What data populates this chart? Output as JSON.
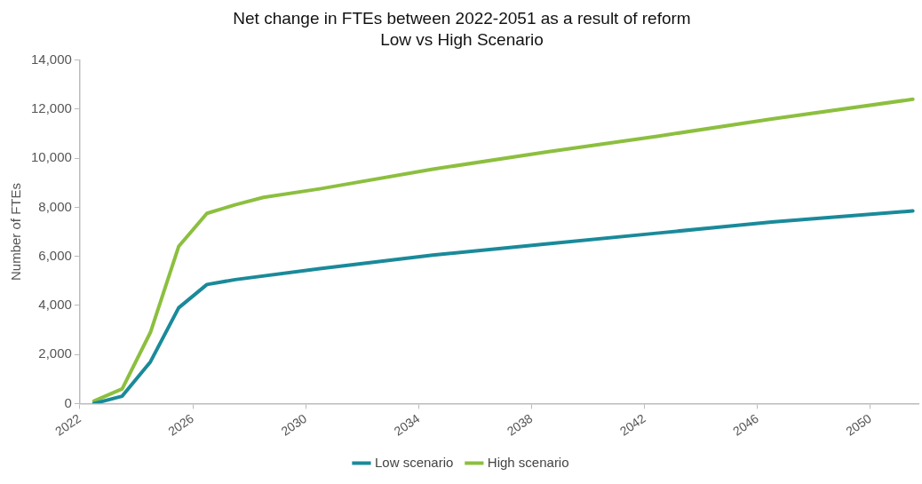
{
  "chart_data": {
    "type": "line",
    "title": "Net change in FTEs between 2022-2051 as a result of reform",
    "subtitle": "Low vs High Scenario",
    "ylabel": "Number of FTEs",
    "series": [
      {
        "name": "Low scenario",
        "color": "#1a8a9a",
        "x": [
          2022.5,
          2023.5,
          2024.5,
          2025.5,
          2026.5,
          2027.5,
          2030.5,
          2034.5,
          2038.5,
          2042.5,
          2046.5,
          2051.5
        ],
        "values": [
          0,
          300,
          1700,
          3900,
          4850,
          5050,
          5500,
          6050,
          6500,
          6950,
          7400,
          7850
        ]
      },
      {
        "name": "High scenario",
        "color": "#8cbf3f",
        "x": [
          2022.5,
          2023.5,
          2024.5,
          2025.5,
          2026.5,
          2027.5,
          2028.5,
          2030.5,
          2034.5,
          2038.5,
          2042.5,
          2046.5,
          2051.5
        ],
        "values": [
          100,
          600,
          2900,
          6400,
          7750,
          8100,
          8400,
          8750,
          9550,
          10250,
          10900,
          11600,
          12400
        ]
      }
    ],
    "xlim": [
      2022,
      2051.7
    ],
    "xticks": [
      2022,
      2026,
      2030,
      2034,
      2038,
      2042,
      2046,
      2050
    ],
    "ylim": [
      0,
      14000
    ],
    "yticks": [
      0,
      {
        "value": 2000,
        "label": "2,000"
      },
      {
        "value": 4000,
        "label": "4,000"
      },
      {
        "value": 6000,
        "label": "6,000"
      },
      {
        "value": 8000,
        "label": "8,000"
      },
      {
        "value": 10000,
        "label": "10,000"
      },
      {
        "value": 12000,
        "label": "12,000"
      },
      {
        "value": 14000,
        "label": "14,000"
      }
    ],
    "grid": false,
    "legend": "bottom",
    "marker": "none",
    "line_style": "solid"
  }
}
